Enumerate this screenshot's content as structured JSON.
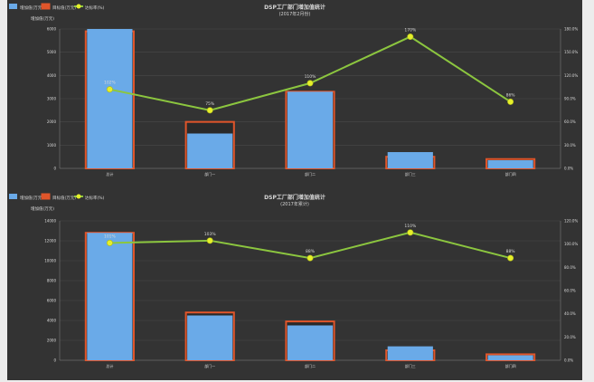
{
  "colors": {
    "background": "#333333",
    "bar_fill": "#6aaae8",
    "bar_outline": "#e0552a",
    "bar_dark_cap": "#2a2a2a",
    "line": "#8cc63f",
    "marker": "#e6ef2a",
    "grid": "#4a4a4a",
    "text": "#d8d8d8"
  },
  "chart_data": [
    {
      "type": "bar",
      "title": "DSP工厂部门增加值统计",
      "subtitle": "(2017年2月份)",
      "ylabel": "增加值(万元)",
      "legend_position": "top-left",
      "legend": [
        "增加值(万元)",
        "目标值(万元)",
        "达标率(%)"
      ],
      "categories": [
        "总计",
        "部门一",
        "部门二",
        "部门三",
        "部门四"
      ],
      "series": [
        {
          "name": "增加值(万元)",
          "values": [
            6000,
            1500,
            3300,
            700,
            350
          ]
        },
        {
          "name": "目标值(万元)",
          "values": [
            5900,
            2000,
            3300,
            500,
            400
          ]
        },
        {
          "name": "达标率(%)",
          "axis": "right",
          "values": [
            102,
            75,
            110,
            170,
            86
          ]
        }
      ],
      "y_left": {
        "min": 0,
        "max": 6000,
        "ticks": [
          0,
          1000,
          2000,
          3000,
          4000,
          5000,
          6000
        ]
      },
      "y_right": {
        "min": 0,
        "max": 180,
        "ticks": [
          0,
          30,
          60,
          90,
          120,
          150,
          180
        ]
      },
      "point_labels": [
        "102%",
        "75%",
        "110%",
        "170%",
        "86%"
      ],
      "grid": true
    },
    {
      "type": "bar",
      "title": "DSP工厂部门增加值统计",
      "subtitle": "(2017年累计)",
      "ylabel": "增加值(万元)",
      "legend_position": "top-left",
      "legend": [
        "增加值(万元)",
        "目标值(万元)",
        "达标率(%)"
      ],
      "categories": [
        "总计",
        "部门一",
        "部门二",
        "部门三",
        "部门四"
      ],
      "series": [
        {
          "name": "增加值(万元)",
          "values": [
            12800,
            4500,
            3500,
            1400,
            500
          ]
        },
        {
          "name": "目标值(万元)",
          "values": [
            12800,
            4800,
            3900,
            1000,
            600
          ]
        },
        {
          "name": "达标率(%)",
          "axis": "right",
          "values": [
            101,
            103,
            88,
            110,
            88
          ]
        }
      ],
      "y_left": {
        "min": 0,
        "max": 14000,
        "ticks": [
          0,
          2000,
          4000,
          6000,
          8000,
          10000,
          12000,
          14000
        ]
      },
      "y_right": {
        "min": 0,
        "max": 120,
        "ticks": [
          0,
          20,
          40,
          60,
          80,
          100,
          120
        ]
      },
      "point_labels": [
        "101%",
        "103%",
        "88%",
        "110%",
        "88%"
      ],
      "grid": true
    }
  ]
}
